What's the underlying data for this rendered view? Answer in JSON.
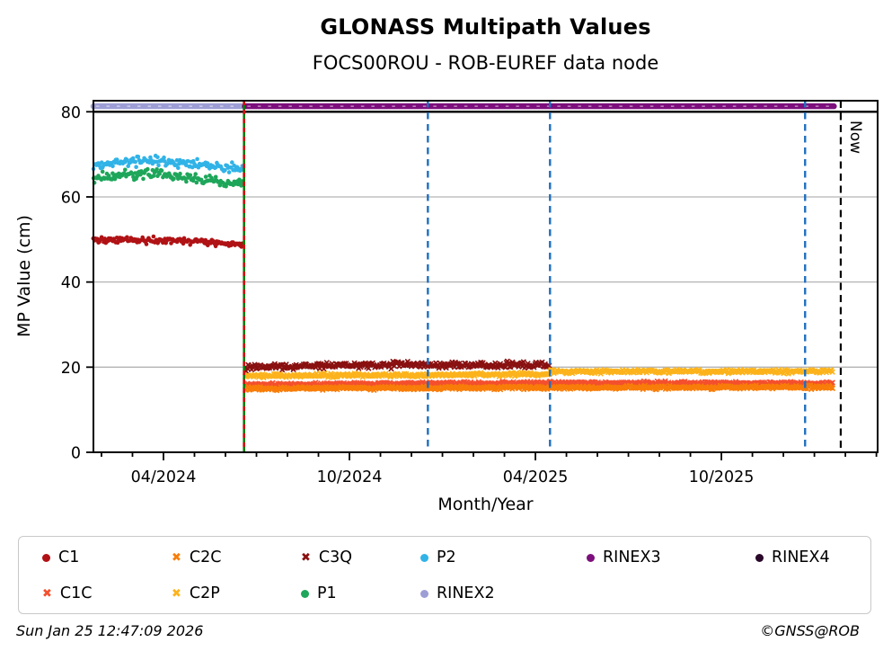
{
  "title": "GLONASS Multipath Values",
  "subtitle": "FOCS00ROU - ROB-EUREF data node",
  "now_label": "Now",
  "footer": {
    "timestamp": "Sun Jan 25 12:47:09 2026",
    "copyright": "©GNSS@ROB"
  },
  "chart_data": {
    "type": "scatter",
    "title": "GLONASS Multipath Values",
    "subtitle": "FOCS00ROU - ROB-EUREF data node",
    "xlabel": "Month/Year",
    "ylabel": "MP Value (cm)",
    "ylim": [
      0,
      82.6
    ],
    "yticks": [
      0,
      20,
      40,
      60,
      80
    ],
    "grid_y": [
      20,
      40,
      60
    ],
    "baseline_y": 80,
    "x_epoch": "months since 2024-01-01",
    "xlim_months": [
      0.74,
      26.04
    ],
    "minor_tick_every_months": 1,
    "major_ticks": [
      {
        "month": 3,
        "label": "04/2024"
      },
      {
        "month": 9,
        "label": "10/2024"
      },
      {
        "month": 15,
        "label": "04/2025"
      },
      {
        "month": 21,
        "label": "10/2025"
      }
    ],
    "series": [
      {
        "name": "C1",
        "marker": "circle",
        "color": "#b01215",
        "segments": [
          {
            "from_month": 0.74,
            "to_month": 5.58,
            "mean": 49.6,
            "spread": 0.75,
            "shape": [
              [
                0,
                0.3
              ],
              [
                0.5,
                0.1
              ],
              [
                1,
                -0.6
              ]
            ]
          }
        ]
      },
      {
        "name": "P1",
        "marker": "circle",
        "color": "#1ea65a",
        "segments": [
          {
            "from_month": 0.74,
            "to_month": 5.58,
            "mean": 64.8,
            "spread": 1.0,
            "shape": [
              [
                0,
                -0.3
              ],
              [
                0.4,
                0.6
              ],
              [
                1,
                -1.8
              ]
            ]
          }
        ]
      },
      {
        "name": "P2",
        "marker": "circle",
        "color": "#31b3e7",
        "segments": [
          {
            "from_month": 0.74,
            "to_month": 5.58,
            "mean": 67.8,
            "spread": 1.0,
            "shape": [
              [
                0,
                -0.3
              ],
              [
                0.35,
                0.8
              ],
              [
                1,
                -1.0
              ]
            ]
          }
        ]
      },
      {
        "name": "C3Q",
        "marker": "x",
        "color": "#8a1111",
        "segments": [
          {
            "from_month": 5.64,
            "to_month": 15.47,
            "mean": 20.4,
            "spread": 0.7,
            "shape": [
              [
                0,
                -0.4
              ],
              [
                0.5,
                0.2
              ],
              [
                1,
                0.1
              ]
            ]
          }
        ]
      },
      {
        "name": "C2P",
        "marker": "x",
        "color": "#fcb31c",
        "segments": [
          {
            "from_month": 5.64,
            "to_month": 15.47,
            "mean": 18.1,
            "spread": 0.4,
            "shape": [
              [
                0,
                -0.1
              ],
              [
                1,
                0.2
              ]
            ]
          },
          {
            "from_month": 15.47,
            "to_month": 24.6,
            "mean": 19.0,
            "spread": 0.4,
            "shape": [
              [
                0,
                0
              ],
              [
                1,
                0
              ]
            ]
          }
        ]
      },
      {
        "name": "C1C",
        "marker": "x",
        "color": "#f4502e",
        "segments": [
          {
            "from_month": 5.64,
            "to_month": 24.6,
            "mean": 16.1,
            "spread": 0.35,
            "shape": [
              [
                0,
                -0.2
              ],
              [
                0.5,
                0.2
              ],
              [
                1,
                0.1
              ]
            ]
          }
        ]
      },
      {
        "name": "C2C",
        "marker": "x",
        "color": "#f87d09",
        "segments": [
          {
            "from_month": 5.64,
            "to_month": 24.6,
            "mean": 15.0,
            "spread": 0.35,
            "shape": [
              [
                0,
                0
              ],
              [
                1,
                0.3
              ]
            ]
          }
        ]
      }
    ],
    "availability_bands": [
      {
        "name": "RINEX2",
        "color": "#9e9ed6",
        "y": 81.3,
        "from_month": 0.74,
        "to_month": 5.6
      },
      {
        "name": "RINEX3",
        "color": "#7d0f7d",
        "y": 81.3,
        "from_month": 5.62,
        "to_month": 24.63
      }
    ],
    "event_lines": [
      {
        "kind": "change",
        "month": 5.6,
        "color": "#0a7d0a",
        "style": "solid",
        "overlay_dash_color": "#d01010"
      },
      {
        "kind": "event",
        "month": 11.53,
        "color": "#1f6fc0",
        "style": "dashed"
      },
      {
        "kind": "event",
        "month": 15.47,
        "color": "#1f6fc0",
        "style": "dashed"
      },
      {
        "kind": "event",
        "month": 23.7,
        "color": "#1f6fc0",
        "style": "dashed"
      },
      {
        "kind": "now",
        "month": 24.85,
        "color": "#000000",
        "style": "dashed",
        "label": "Now"
      }
    ],
    "legend_position": "bottom",
    "grid": "horizontal-only"
  },
  "legend": {
    "items": [
      {
        "label": "C1",
        "marker": "circle",
        "color": "#b01215",
        "row": 0,
        "col": 0
      },
      {
        "label": "C2C",
        "marker": "x",
        "color": "#f87d09",
        "row": 0,
        "col": 1
      },
      {
        "label": "C3Q",
        "marker": "x",
        "color": "#8a1111",
        "row": 0,
        "col": 2
      },
      {
        "label": "P2",
        "marker": "circle",
        "color": "#31b3e7",
        "row": 0,
        "col": 3
      },
      {
        "label": "RINEX3",
        "marker": "circle",
        "color": "#7d0f7d",
        "row": 0,
        "col": 4
      },
      {
        "label": "RINEX4",
        "marker": "circle",
        "color": "#2a082a",
        "row": 0,
        "col": 5
      },
      {
        "label": "C1C",
        "marker": "x",
        "color": "#f4502e",
        "row": 1,
        "col": 0
      },
      {
        "label": "C2P",
        "marker": "x",
        "color": "#fcb31c",
        "row": 1,
        "col": 1
      },
      {
        "label": "P1",
        "marker": "circle",
        "color": "#1ea65a",
        "row": 1,
        "col": 2
      },
      {
        "label": "RINEX2",
        "marker": "circle",
        "color": "#9e9ed6",
        "row": 1,
        "col": 3
      }
    ]
  },
  "colors": {
    "grid": "#b3b3b3",
    "axis": "#000000",
    "background": "#ffffff"
  }
}
